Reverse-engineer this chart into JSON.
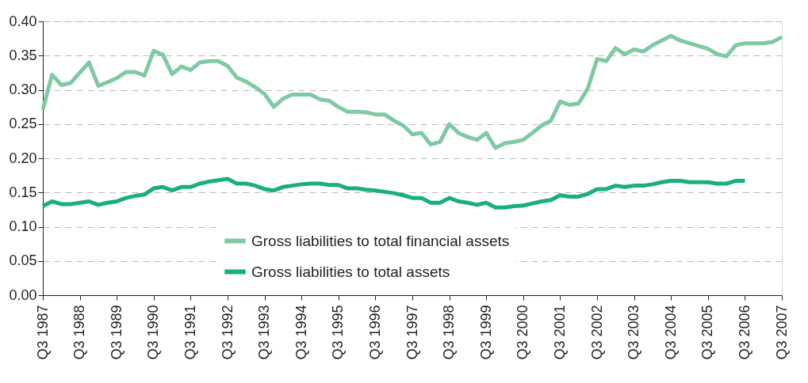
{
  "chart_data": {
    "type": "line",
    "categories": [
      "Q3 1987",
      null,
      null,
      null,
      "Q3 1988",
      null,
      null,
      null,
      "Q3 1989",
      null,
      null,
      null,
      "Q3 1990",
      null,
      null,
      null,
      "Q3 1991",
      null,
      null,
      null,
      "Q3 1992",
      null,
      null,
      null,
      "Q3 1993",
      null,
      null,
      null,
      "Q3 1994",
      null,
      null,
      null,
      "Q3 1995",
      null,
      null,
      null,
      "Q3 1996",
      null,
      null,
      null,
      "Q3 1997",
      null,
      null,
      null,
      "Q3 1998",
      null,
      null,
      null,
      "Q3 1999",
      null,
      null,
      null,
      "Q3 2000",
      null,
      null,
      null,
      "Q3 2001",
      null,
      null,
      null,
      "Q3 2002",
      null,
      null,
      null,
      "Q3 2003",
      null,
      null,
      null,
      "Q3 2004",
      null,
      null,
      null,
      "Q3 2005",
      null,
      null,
      null,
      "Q3 2006",
      null,
      null,
      null,
      "Q3 2007"
    ],
    "series": [
      {
        "name": "Gross liabilities to total financial assets",
        "color": "#7fc9a5",
        "values": [
          0.271,
          0.322,
          0.307,
          0.31,
          0.325,
          0.34,
          0.306,
          0.311,
          0.317,
          0.326,
          0.326,
          0.321,
          0.357,
          0.351,
          0.323,
          0.334,
          0.329,
          0.34,
          0.342,
          0.342,
          0.335,
          0.318,
          0.312,
          0.304,
          0.294,
          0.275,
          0.287,
          0.293,
          0.293,
          0.293,
          0.286,
          0.284,
          0.275,
          0.268,
          0.268,
          0.267,
          0.264,
          0.264,
          0.255,
          0.248,
          0.235,
          0.237,
          0.22,
          0.224,
          0.25,
          0.237,
          0.231,
          0.227,
          0.237,
          0.215,
          0.222,
          0.224,
          0.227,
          0.237,
          0.248,
          0.255,
          0.283,
          0.278,
          0.28,
          0.302,
          0.345,
          0.342,
          0.361,
          0.352,
          0.359,
          0.356,
          0.365,
          0.372,
          0.379,
          0.372,
          0.368,
          0.364,
          0.36,
          0.352,
          0.349,
          0.365,
          0.368,
          0.368,
          0.368,
          0.37,
          0.377
        ]
      },
      {
        "name": "Gross liabilities to total assets",
        "color": "#1ab07a",
        "values": [
          0.13,
          0.137,
          0.133,
          0.133,
          0.135,
          0.137,
          0.132,
          0.135,
          0.137,
          0.142,
          0.145,
          0.147,
          0.156,
          0.158,
          0.153,
          0.158,
          0.158,
          0.163,
          0.166,
          0.168,
          0.17,
          0.163,
          0.163,
          0.16,
          0.155,
          0.153,
          0.158,
          0.16,
          0.162,
          0.163,
          0.163,
          0.161,
          0.161,
          0.156,
          0.156,
          0.154,
          0.153,
          0.151,
          0.149,
          0.146,
          0.142,
          0.142,
          0.135,
          0.135,
          0.142,
          0.137,
          0.135,
          0.132,
          0.135,
          0.128,
          0.128,
          0.13,
          0.131,
          0.134,
          0.137,
          0.139,
          0.146,
          0.144,
          0.144,
          0.148,
          0.155,
          0.155,
          0.16,
          0.158,
          0.16,
          0.16,
          0.162,
          0.165,
          0.167,
          0.167,
          0.165,
          0.165,
          0.165,
          0.163,
          0.163,
          0.167,
          0.167,
          null,
          null,
          null,
          null
        ]
      }
    ],
    "ylim": [
      0,
      0.4
    ],
    "yticks": [
      {
        "value": 0,
        "label": "0.00"
      },
      {
        "value": 0.05,
        "label": "0.05"
      },
      {
        "value": 0.1,
        "label": "0.10"
      },
      {
        "value": 0.15,
        "label": "0.15"
      },
      {
        "value": 0.2,
        "label": "0.20"
      },
      {
        "value": 0.25,
        "label": "0.25"
      },
      {
        "value": 0.3,
        "label": "0.30"
      },
      {
        "value": 0.35,
        "label": "0.35"
      },
      {
        "value": 0.4,
        "label": "0.40"
      }
    ],
    "grid": "y",
    "legend": "bottom",
    "line_style": "solid",
    "marker": "none"
  }
}
